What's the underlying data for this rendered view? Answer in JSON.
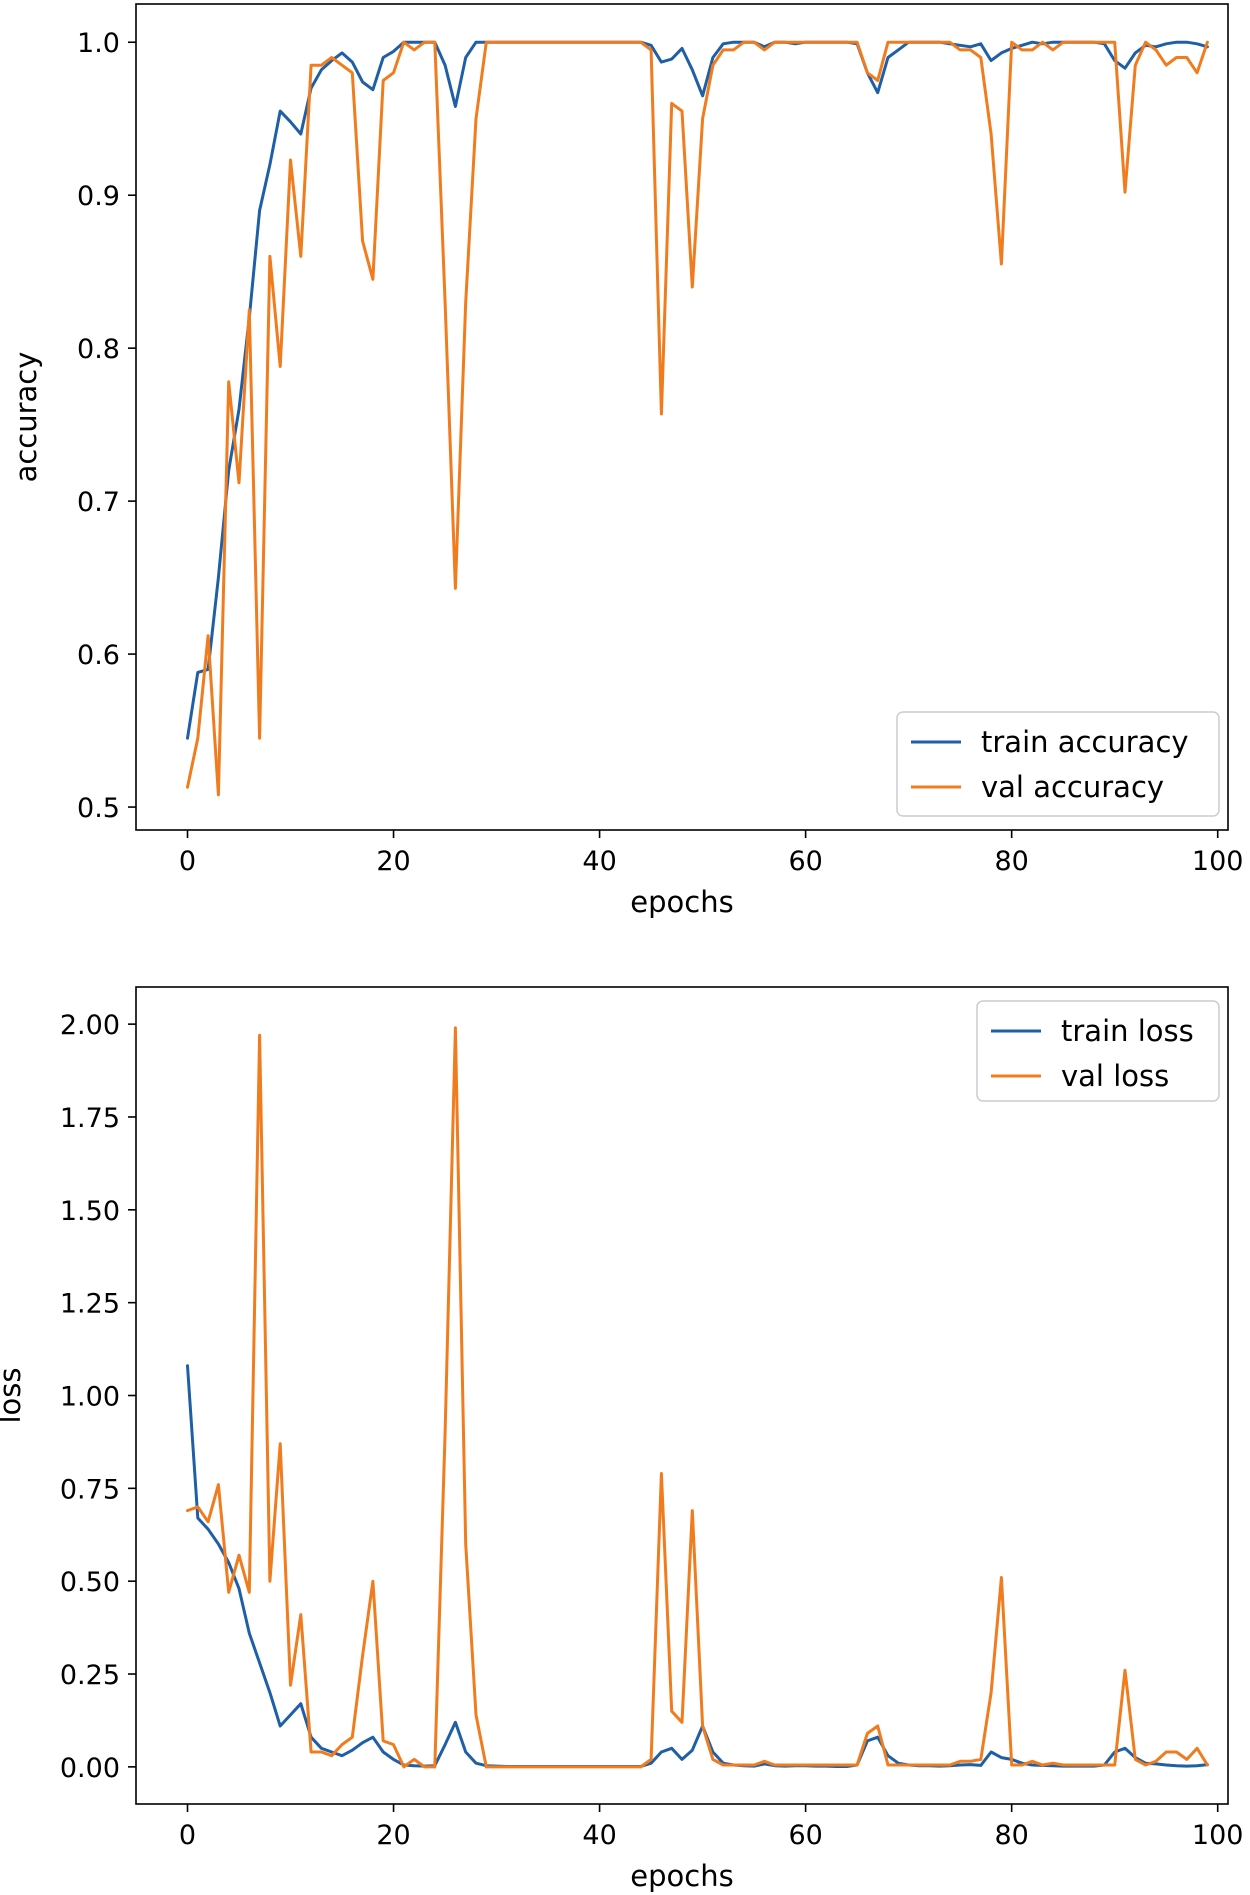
{
  "colors": {
    "train": "#1f5fa6",
    "val": "#f07c1e"
  },
  "chart_data": [
    {
      "type": "line",
      "xlabel": "epochs",
      "ylabel": "accuracy",
      "xlim": [
        -5,
        101
      ],
      "ylim": [
        0.485,
        1.025
      ],
      "xticks": [
        0,
        20,
        40,
        60,
        80,
        100
      ],
      "xtick_labels": [
        "0",
        "20",
        "40",
        "60",
        "80",
        "100"
      ],
      "yticks": [
        0.5,
        0.6,
        0.7,
        0.8,
        0.9,
        1.0
      ],
      "ytick_labels": [
        "0.5",
        "0.6",
        "0.7",
        "0.8",
        "0.9",
        "1.0"
      ],
      "legend_position": "lower-right",
      "series": [
        {
          "name": "train accuracy",
          "color_key": "train",
          "values": [
            0.545,
            0.588,
            0.59,
            0.65,
            0.72,
            0.76,
            0.82,
            0.89,
            0.92,
            0.955,
            0.948,
            0.94,
            0.97,
            0.982,
            0.988,
            0.993,
            0.987,
            0.974,
            0.969,
            0.99,
            0.994,
            1.0,
            1.0,
            1.0,
            1.0,
            0.985,
            0.958,
            0.99,
            1.0,
            1.0,
            1.0,
            1.0,
            1.0,
            1.0,
            1.0,
            1.0,
            1.0,
            1.0,
            1.0,
            1.0,
            1.0,
            1.0,
            1.0,
            1.0,
            1.0,
            0.998,
            0.987,
            0.989,
            0.996,
            0.982,
            0.965,
            0.99,
            0.999,
            1.0,
            1.0,
            1.0,
            0.997,
            1.0,
            1.0,
            0.999,
            1.0,
            1.0,
            1.0,
            1.0,
            1.0,
            0.999,
            0.98,
            0.967,
            0.99,
            0.995,
            1.0,
            1.0,
            1.0,
            1.0,
            0.999,
            0.998,
            0.997,
            0.999,
            0.988,
            0.993,
            0.996,
            0.998,
            1.0,
            0.999,
            1.0,
            1.0,
            1.0,
            1.0,
            1.0,
            0.999,
            0.988,
            0.983,
            0.993,
            0.998,
            0.997,
            0.999,
            1.0,
            1.0,
            0.999,
            0.997
          ]
        },
        {
          "name": "val accuracy",
          "color_key": "val",
          "values": [
            0.513,
            0.545,
            0.612,
            0.508,
            0.778,
            0.712,
            0.825,
            0.545,
            0.86,
            0.788,
            0.923,
            0.86,
            0.985,
            0.985,
            0.99,
            0.985,
            0.98,
            0.87,
            0.845,
            0.975,
            0.98,
            1.0,
            0.995,
            1.0,
            1.0,
            0.83,
            0.643,
            0.83,
            0.95,
            1.0,
            1.0,
            1.0,
            1.0,
            1.0,
            1.0,
            1.0,
            1.0,
            1.0,
            1.0,
            1.0,
            1.0,
            1.0,
            1.0,
            1.0,
            1.0,
            0.995,
            0.757,
            0.96,
            0.955,
            0.84,
            0.95,
            0.985,
            0.995,
            0.995,
            1.0,
            1.0,
            0.995,
            1.0,
            1.0,
            1.0,
            1.0,
            1.0,
            1.0,
            1.0,
            1.0,
            1.0,
            0.98,
            0.975,
            1.0,
            1.0,
            1.0,
            1.0,
            1.0,
            1.0,
            1.0,
            0.995,
            0.995,
            0.99,
            0.94,
            0.855,
            1.0,
            0.995,
            0.995,
            1.0,
            0.995,
            1.0,
            1.0,
            1.0,
            1.0,
            1.0,
            1.0,
            0.902,
            0.985,
            1.0,
            0.995,
            0.985,
            0.99,
            0.99,
            0.98,
            1.0
          ]
        }
      ]
    },
    {
      "type": "line",
      "xlabel": "epochs",
      "ylabel": "loss",
      "xlim": [
        -5,
        101
      ],
      "ylim": [
        -0.1,
        2.1
      ],
      "xticks": [
        0,
        20,
        40,
        60,
        80,
        100
      ],
      "xtick_labels": [
        "0",
        "20",
        "40",
        "60",
        "80",
        "100"
      ],
      "yticks": [
        0.0,
        0.25,
        0.5,
        0.75,
        1.0,
        1.25,
        1.5,
        1.75,
        2.0
      ],
      "ytick_labels": [
        "0.00",
        "0.25",
        "0.50",
        "0.75",
        "1.00",
        "1.25",
        "1.50",
        "1.75",
        "2.00"
      ],
      "legend_position": "upper-right",
      "series": [
        {
          "name": "train loss",
          "color_key": "train",
          "values": [
            1.08,
            0.67,
            0.64,
            0.6,
            0.55,
            0.48,
            0.36,
            0.28,
            0.2,
            0.11,
            0.14,
            0.17,
            0.08,
            0.05,
            0.04,
            0.03,
            0.045,
            0.065,
            0.08,
            0.04,
            0.02,
            0.005,
            0.003,
            0.002,
            0.003,
            0.06,
            0.12,
            0.04,
            0.01,
            0.003,
            0.002,
            0.001,
            0.001,
            0.001,
            0.001,
            0.001,
            0.001,
            0.001,
            0.001,
            0.001,
            0.001,
            0.001,
            0.001,
            0.001,
            0.001,
            0.01,
            0.04,
            0.05,
            0.02,
            0.045,
            0.11,
            0.04,
            0.01,
            0.005,
            0.003,
            0.002,
            0.008,
            0.003,
            0.002,
            0.003,
            0.003,
            0.002,
            0.002,
            0.001,
            0.001,
            0.005,
            0.07,
            0.08,
            0.03,
            0.01,
            0.005,
            0.003,
            0.003,
            0.002,
            0.003,
            0.005,
            0.006,
            0.004,
            0.04,
            0.025,
            0.02,
            0.01,
            0.005,
            0.004,
            0.003,
            0.002,
            0.002,
            0.002,
            0.002,
            0.005,
            0.04,
            0.05,
            0.025,
            0.01,
            0.008,
            0.005,
            0.003,
            0.002,
            0.003,
            0.006
          ]
        },
        {
          "name": "val loss",
          "color_key": "val",
          "values": [
            0.69,
            0.7,
            0.66,
            0.76,
            0.47,
            0.57,
            0.47,
            1.97,
            0.5,
            0.87,
            0.22,
            0.41,
            0.04,
            0.04,
            0.03,
            0.06,
            0.08,
            0.3,
            0.5,
            0.07,
            0.06,
            0.0,
            0.02,
            0.0,
            0.0,
            0.9,
            1.99,
            0.6,
            0.14,
            0.0,
            0.0,
            0.0,
            0.0,
            0.0,
            0.0,
            0.0,
            0.0,
            0.0,
            0.0,
            0.0,
            0.0,
            0.0,
            0.0,
            0.0,
            0.0,
            0.02,
            0.79,
            0.15,
            0.12,
            0.69,
            0.11,
            0.02,
            0.005,
            0.005,
            0.005,
            0.005,
            0.015,
            0.005,
            0.005,
            0.005,
            0.005,
            0.005,
            0.005,
            0.005,
            0.005,
            0.005,
            0.09,
            0.11,
            0.005,
            0.005,
            0.005,
            0.005,
            0.005,
            0.005,
            0.005,
            0.015,
            0.015,
            0.02,
            0.2,
            0.51,
            0.005,
            0.005,
            0.015,
            0.005,
            0.01,
            0.005,
            0.005,
            0.005,
            0.005,
            0.005,
            0.005,
            0.26,
            0.02,
            0.005,
            0.015,
            0.04,
            0.04,
            0.02,
            0.05,
            0.005
          ]
        }
      ]
    }
  ]
}
